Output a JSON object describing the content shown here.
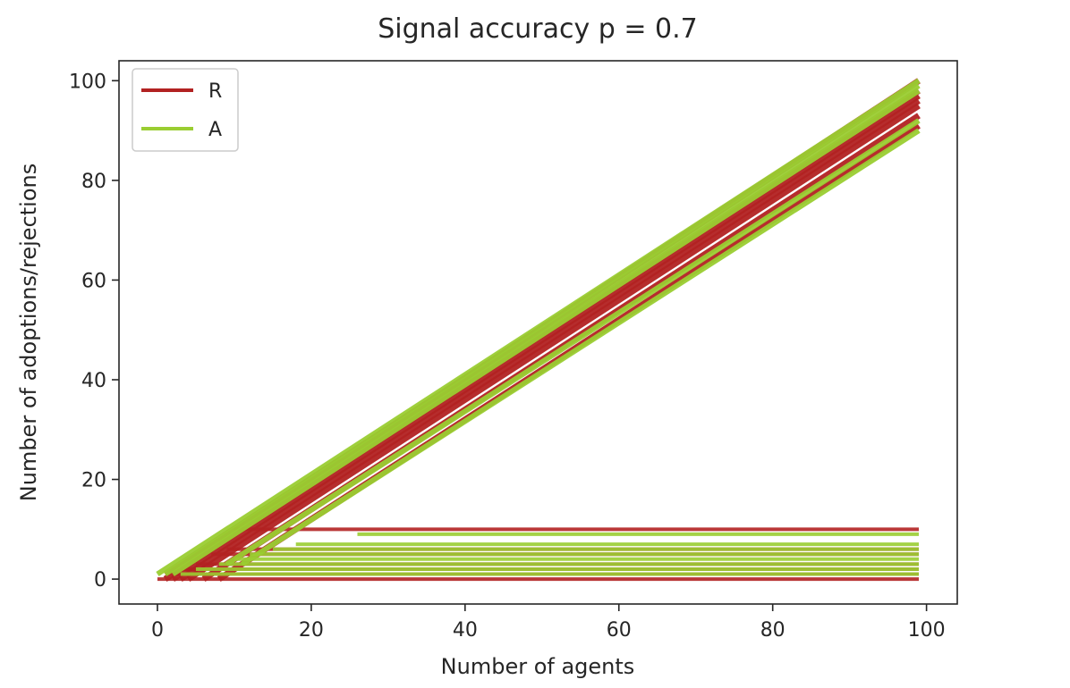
{
  "chart_data": {
    "type": "line",
    "title": "Signal accuracy p =  0.7",
    "xlabel": "Number of agents",
    "ylabel": "Number of adoptions/rejections",
    "xlim": [
      -5,
      104
    ],
    "ylim": [
      -5,
      104
    ],
    "xticks": [
      0,
      20,
      40,
      60,
      80,
      100
    ],
    "yticks": [
      0,
      20,
      40,
      60,
      80,
      100
    ],
    "grid": false,
    "legend_position": "top-left",
    "series": [
      {
        "name": "R",
        "color": "#b22222",
        "cascade_lines": [
          {
            "start": [
              1,
              1
            ],
            "end": [
              99,
              100
            ]
          },
          {
            "start": [
              1,
              0
            ],
            "end": [
              99,
              98
            ]
          },
          {
            "start": [
              2,
              0
            ],
            "end": [
              99,
              97
            ]
          },
          {
            "start": [
              3,
              0
            ],
            "end": [
              99,
              96
            ]
          },
          {
            "start": [
              4,
              0
            ],
            "end": [
              99,
              95
            ]
          },
          {
            "start": [
              6,
              0
            ],
            "end": [
              99,
              93
            ]
          },
          {
            "start": [
              8,
              0
            ],
            "end": [
              99,
              91
            ]
          }
        ],
        "flat_lines": [
          {
            "x": [
              10,
              99
            ],
            "y": 10
          },
          {
            "x": [
              9,
              99
            ],
            "y": 6
          },
          {
            "x": [
              7,
              99
            ],
            "y": 5
          },
          {
            "x": [
              5,
              99
            ],
            "y": 3
          },
          {
            "x": [
              3,
              99
            ],
            "y": 2
          },
          {
            "x": [
              2,
              99
            ],
            "y": 1
          },
          {
            "x": [
              0,
              99
            ],
            "y": 0
          }
        ]
      },
      {
        "name": "A",
        "color": "#9acd32",
        "cascade_lines": [
          {
            "start": [
              0,
              1
            ],
            "end": [
              99,
              100
            ]
          },
          {
            "start": [
              1,
              1
            ],
            "end": [
              99,
              99
            ]
          },
          {
            "start": [
              2,
              1
            ],
            "end": [
              99,
              98
            ]
          },
          {
            "start": [
              9,
              3
            ],
            "end": [
              99,
              92
            ]
          },
          {
            "start": [
              11,
              3
            ],
            "end": [
              99,
              90
            ]
          }
        ],
        "flat_lines": [
          {
            "x": [
              26,
              99
            ],
            "y": 9
          },
          {
            "x": [
              18,
              99
            ],
            "y": 7
          },
          {
            "x": [
              15,
              99
            ],
            "y": 6
          },
          {
            "x": [
              12,
              99
            ],
            "y": 5
          },
          {
            "x": [
              10,
              99
            ],
            "y": 4
          },
          {
            "x": [
              8,
              99
            ],
            "y": 3
          },
          {
            "x": [
              5,
              99
            ],
            "y": 2
          },
          {
            "x": [
              3,
              99
            ],
            "y": 1
          }
        ]
      }
    ]
  }
}
